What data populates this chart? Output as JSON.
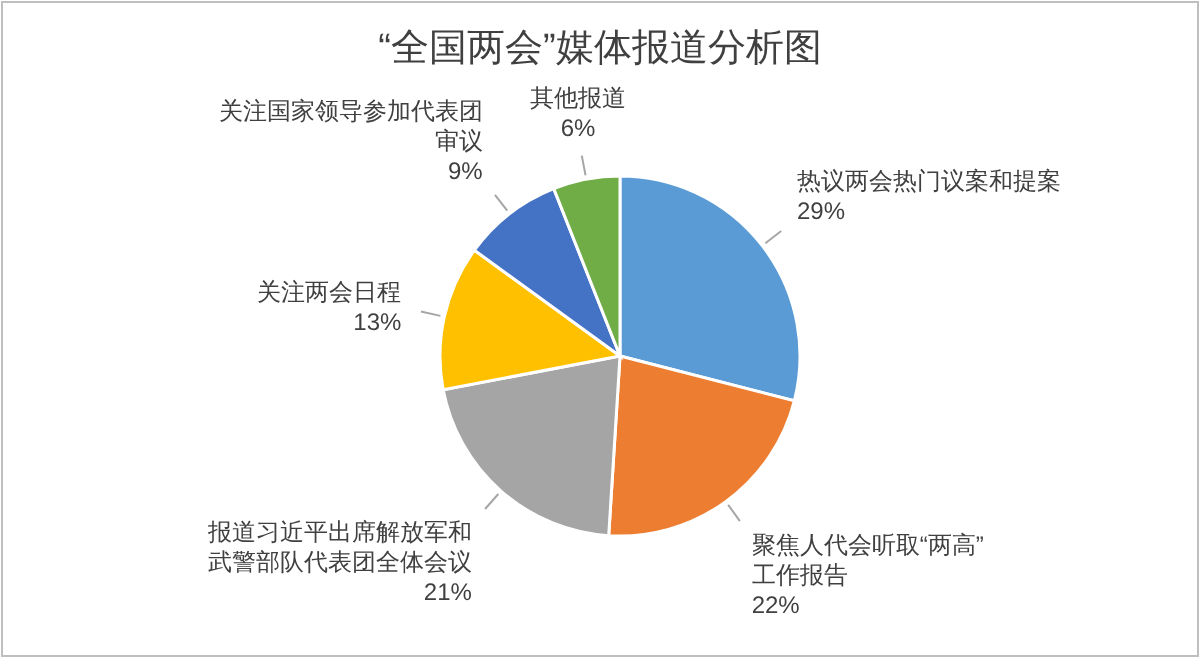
{
  "chart_data": {
    "type": "pie",
    "title": "“全国两会”媒体报道分析图",
    "categories": [
      "热议两会热门议案和提案",
      "聚焦人代会听取“两高”工作报告",
      "报道习近平出席解放军和武警部队代表团全体会议",
      "关注两会日程",
      "关注国家领导参加代表团审议",
      "其他报道"
    ],
    "values": [
      29,
      22,
      21,
      13,
      9,
      6
    ],
    "colors": [
      "#5b9bd5",
      "#ed7d31",
      "#a5a5a5",
      "#ffc000",
      "#4472c4",
      "#70ad47"
    ],
    "value_labels": [
      "29%",
      "22%",
      "21%",
      "13%",
      "9%",
      "6%"
    ]
  }
}
